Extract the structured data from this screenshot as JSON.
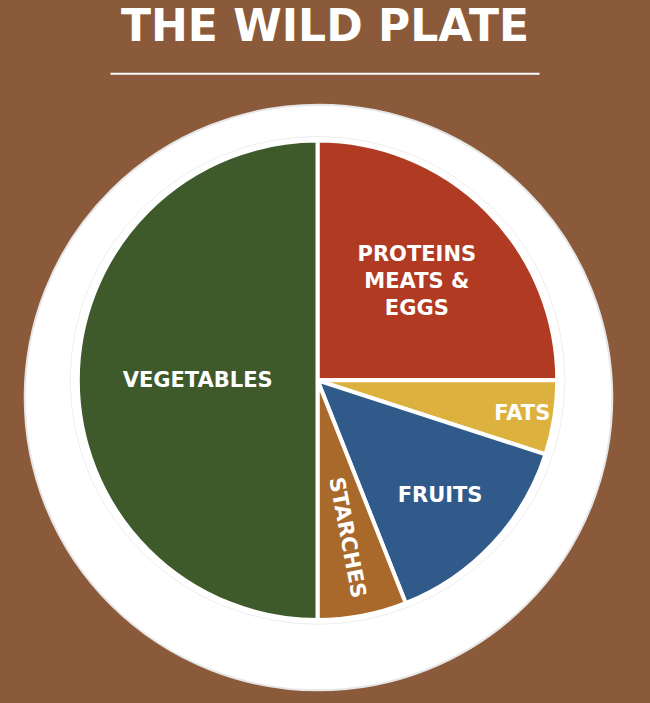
{
  "chart_data": {
    "type": "pie",
    "title": "THE WILD PLATE",
    "categories": [
      "PROTEINS\nMEATS &\nEGGS",
      "FATS",
      "FRUITS",
      "STARCHES",
      "VEGETABLES"
    ],
    "values": [
      25,
      5,
      14,
      6,
      50
    ],
    "colors": [
      "#b03b22",
      "#dcb13d",
      "#2f5a8a",
      "#a8692b",
      "#3e5a2b"
    ]
  }
}
